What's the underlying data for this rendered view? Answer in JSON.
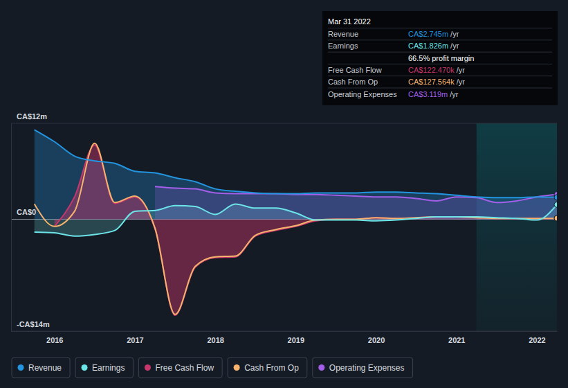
{
  "chart_data": {
    "type": "area",
    "x": [
      2015.75,
      2016,
      2016.25,
      2016.5,
      2016.75,
      2017,
      2017.25,
      2017.5,
      2017.75,
      2018,
      2018.25,
      2018.5,
      2018.75,
      2019,
      2019.25,
      2019.5,
      2019.75,
      2020,
      2020.25,
      2020.5,
      2020.75,
      2021,
      2021.25,
      2021.5,
      2021.75,
      2022,
      2022.25
    ],
    "xlim": [
      2015.46,
      2022.25
    ],
    "xticks": [
      2016,
      2017,
      2018,
      2019,
      2020,
      2021,
      2022
    ],
    "ylim": [
      -14,
      12
    ],
    "yticks": [
      {
        "value": 12,
        "label": "CA$12m"
      },
      {
        "value": 0,
        "label": "CA$0"
      },
      {
        "value": -14,
        "label": "-CA$14m"
      }
    ],
    "grid": true,
    "legend": "bottom",
    "highlight": [
      2021.25,
      2022.25
    ],
    "tooltip": {
      "title": "Mar 31 2022",
      "rows": [
        {
          "label": "Revenue",
          "value": "CA$2.745m",
          "unit": "/yr"
        },
        {
          "label": "Earnings",
          "value": "CA$1.826m",
          "unit": "/yr"
        },
        {
          "value": "66.5% profit margin"
        },
        {
          "label": "Free Cash Flow",
          "value": "CA$122.470k",
          "unit": "/yr"
        },
        {
          "label": "Cash From Op",
          "value": "CA$127.564k",
          "unit": "/yr"
        },
        {
          "label": "Operating Expenses",
          "value": "CA$3.119m",
          "unit": "/yr"
        }
      ]
    },
    "series": [
      {
        "name": "Revenue",
        "color": "#2394df",
        "values": [
          11.2,
          9.7,
          7.9,
          7.3,
          7.0,
          6.0,
          5.8,
          5.2,
          4.7,
          3.8,
          3.5,
          3.3,
          3.2,
          3.2,
          3.3,
          3.3,
          3.3,
          3.4,
          3.4,
          3.3,
          3.2,
          3.0,
          2.8,
          2.7,
          2.7,
          2.8,
          2.745
        ]
      },
      {
        "name": "Earnings",
        "color": "#6ce5e8",
        "values": [
          -1.6,
          -1.7,
          -2.1,
          -1.9,
          -1.4,
          1.0,
          1.1,
          1.7,
          1.6,
          0.6,
          1.9,
          1.4,
          1.4,
          0.8,
          -0.1,
          -0.1,
          -0.1,
          -0.2,
          -0.1,
          0.1,
          0.3,
          0.3,
          0.3,
          0.2,
          0.1,
          -0.1,
          1.826
        ]
      },
      {
        "name": "Free Cash Flow",
        "color": "#c8376c",
        "values": [
          null,
          -0.9,
          2.8,
          9.3,
          2.0,
          2.8,
          -1.2,
          -12.0,
          -6.0,
          -4.8,
          -4.7,
          -2.1,
          -1.4,
          -0.9,
          -0.2,
          0,
          0,
          0.2,
          0.1,
          0.2,
          0.3,
          0.3,
          0.2,
          0.1,
          0.1,
          0.1,
          0.12247
        ]
      },
      {
        "name": "Cash From Op",
        "color": "#f5b36d",
        "values": [
          1.9,
          -0.9,
          1.0,
          9.5,
          2.1,
          2.9,
          -1.1,
          -11.9,
          -5.9,
          -4.7,
          -4.6,
          -2.0,
          -1.3,
          -0.8,
          -0.1,
          0,
          0,
          0.2,
          0.1,
          0.2,
          0.3,
          0.3,
          0.2,
          0.1,
          0.1,
          0.1,
          0.127564
        ]
      },
      {
        "name": "Operating Expenses",
        "color": "#a35fe9",
        "values": [
          null,
          null,
          null,
          null,
          null,
          null,
          4.1,
          3.9,
          3.8,
          3.3,
          3.2,
          3.2,
          3.2,
          3.1,
          3.1,
          3.0,
          2.9,
          2.8,
          2.8,
          2.6,
          2.3,
          2.8,
          2.7,
          2.1,
          2.3,
          2.8,
          3.119
        ]
      }
    ]
  }
}
